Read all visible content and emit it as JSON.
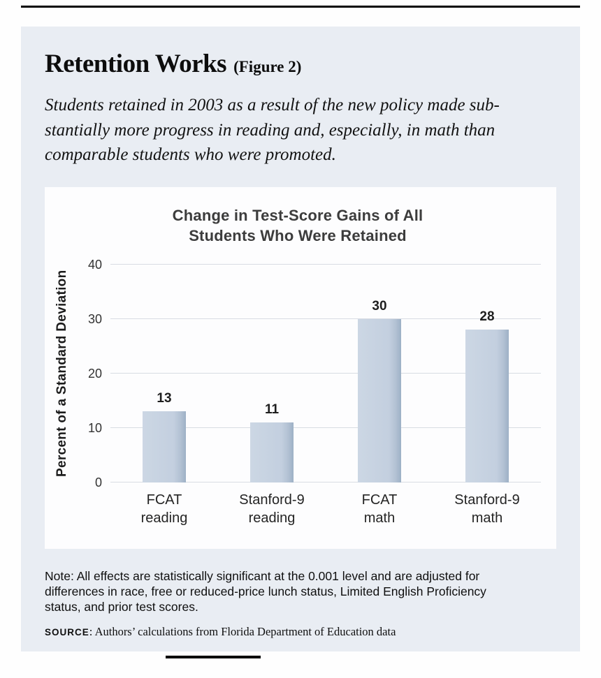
{
  "figure": {
    "title": "Retention Works",
    "figure_label": "(Figure 2)",
    "subtitle": "Students retained in 2003 as a result of the new policy made sub-\nstantially more progress in reading and, especially, in math than\ncomparable students who were promoted."
  },
  "chart_data": {
    "type": "bar",
    "title": "Change in Test-Score Gains of All\nStudents Who Were Retained",
    "categories": [
      "FCAT\nreading",
      "Stanford-9\nreading",
      "FCAT\nmath",
      "Stanford-9\nmath"
    ],
    "values": [
      13,
      11,
      30,
      28
    ],
    "xlabel": "",
    "ylabel": "Percent of a Standard Deviation",
    "yticks": [
      0,
      10,
      20,
      30,
      40
    ],
    "ylim": [
      0,
      40
    ],
    "grid": true,
    "legend": "none"
  },
  "note": "Note: All effects are statistically significant at the 0.001 level and are adjusted for\ndifferences in race, free or reduced-price lunch status, Limited English Proficiency\nstatus, and prior test scores.",
  "source": {
    "label": "SOURCE",
    "text": ": Authors’ calculations from Florida Department of Education data"
  },
  "colors": {
    "panel_background": "#e9edf3",
    "chart_background": "#fdfdfe",
    "bar": "#c3cfdf",
    "bar_shadow": "#9db0c5",
    "gridline": "#d8dce3",
    "rule": "#000000"
  }
}
